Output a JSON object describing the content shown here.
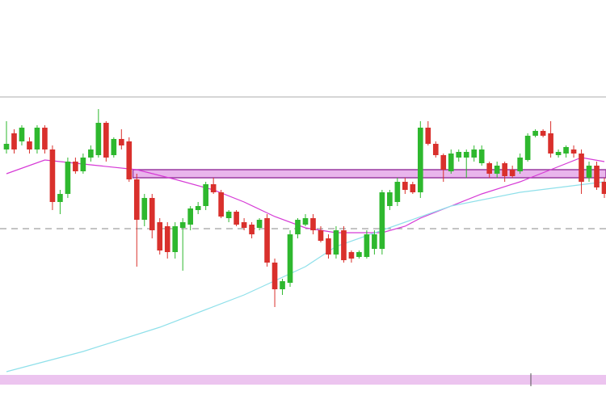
{
  "chart_data": {
    "type": "candlestick",
    "ylim": [
      0,
      100
    ],
    "up_color": "#2eb82e",
    "down_color": "#d9302c",
    "open": [
      63,
      67,
      65,
      65,
      63,
      68.4,
      63,
      50,
      52,
      60,
      57.6,
      61,
      61.6,
      69.6,
      61.6,
      65.6,
      65,
      55.6,
      45.6,
      51,
      45,
      44,
      37.6,
      43.6,
      44.4,
      48,
      49,
      54.4,
      52.4,
      46,
      47.6,
      45,
      44.4,
      43.6,
      46,
      35,
      28.4,
      30,
      42,
      44.4,
      46,
      43,
      41,
      37,
      43,
      37.6,
      36.4,
      36.4,
      38.4,
      38.4,
      49,
      50,
      55,
      54.4,
      52.4,
      68.4,
      64.4,
      61.6,
      57.6,
      61,
      61,
      61,
      59.6,
      59.6,
      57,
      59.6,
      58,
      57.6,
      60.4,
      66.4,
      67.6,
      67,
      61.6,
      62,
      63,
      62,
      56,
      59,
      55
    ],
    "high": [
      70,
      68,
      69,
      66,
      69,
      69,
      64,
      53,
      61,
      61,
      62,
      64,
      73,
      70,
      66,
      68,
      66,
      57,
      52,
      52,
      46,
      45,
      45,
      46,
      49,
      50,
      55,
      56,
      53,
      48,
      48,
      46,
      45,
      46,
      47,
      36,
      31,
      43,
      46,
      47,
      47,
      44,
      42,
      44,
      44,
      38,
      38,
      43,
      43,
      53,
      53,
      56,
      56,
      55,
      70,
      70,
      65,
      62,
      63,
      63,
      63,
      64,
      64,
      60,
      60,
      60,
      59,
      62,
      67,
      68,
      68,
      70,
      63,
      64,
      64,
      63,
      60,
      60,
      56
    ],
    "low": [
      62,
      62,
      64,
      62,
      62,
      62,
      48,
      47,
      51,
      57,
      57,
      60,
      61,
      60,
      61,
      63,
      55,
      34,
      44,
      41,
      37,
      36,
      36,
      33,
      43,
      47,
      48,
      52,
      46,
      45,
      44,
      43,
      41,
      43,
      34,
      24,
      27,
      29,
      41,
      44,
      42,
      40,
      36,
      36,
      35,
      35,
      36,
      36,
      37,
      37,
      48,
      49,
      52,
      52,
      51,
      64,
      61,
      55,
      57,
      60,
      56,
      60,
      59,
      56,
      56,
      55,
      56,
      57,
      60,
      66,
      66,
      61,
      61,
      61,
      61,
      52,
      55,
      53,
      51
    ],
    "close": [
      64.4,
      63,
      68.4,
      63,
      68.4,
      63,
      50,
      52,
      60,
      57.6,
      61,
      63,
      69.6,
      61,
      65.6,
      64,
      55.6,
      45.6,
      51,
      43,
      38,
      37.6,
      44,
      45,
      48.4,
      49,
      54.4,
      52.4,
      46.4,
      47.6,
      44.4,
      43.6,
      42,
      45.6,
      35,
      28.4,
      30.4,
      42,
      45.6,
      46,
      43,
      40.4,
      37,
      43,
      35.6,
      36,
      37.6,
      42,
      42,
      52.4,
      52.4,
      55,
      53,
      52.4,
      68.4,
      64.4,
      61.6,
      58,
      62,
      62.4,
      62.4,
      63,
      63,
      57,
      59,
      56.4,
      56.4,
      61,
      66.4,
      67.6,
      66.4,
      62,
      62.4,
      63.6,
      62,
      55,
      59,
      53.6,
      52
    ],
    "overlays": [
      {
        "color": "#d63ad6",
        "x": [
          0,
          5,
          12,
          17,
          22,
          27,
          31,
          35,
          39,
          43,
          49,
          52,
          54,
          58,
          62,
          67,
          71,
          75,
          78
        ],
        "values": [
          57,
          60.4,
          59,
          58,
          55.6,
          53,
          50,
          46.4,
          43.6,
          42.4,
          42.4,
          44,
          46,
          49,
          52,
          55,
          58,
          61,
          60
        ]
      },
      {
        "color": "#8fe0ea",
        "x": [
          0,
          10,
          20,
          31,
          39,
          43,
          52,
          58,
          67,
          78
        ],
        "values": [
          8,
          13,
          19,
          27,
          34,
          39,
          45,
          49,
          52.4,
          55
        ]
      }
    ],
    "zone": {
      "from": 56,
      "to": 58,
      "start": 17,
      "color": "#e9b5ec"
    },
    "hline": 43.4,
    "top_line": 76
  }
}
